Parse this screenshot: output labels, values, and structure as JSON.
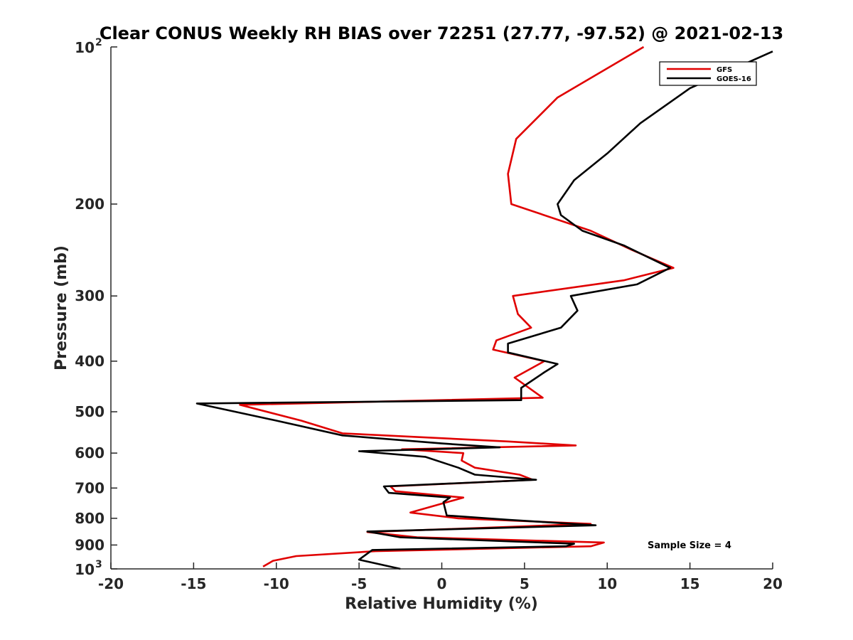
{
  "chart_data": {
    "type": "line",
    "title": "Clear CONUS Weekly RH BIAS over 72251 (27.77, -97.52) @ 2021-02-13",
    "xlabel": "Relative Humidity (%)",
    "ylabel": "Pressure (mb)",
    "xlim": [
      -20,
      20
    ],
    "ylim": [
      1000,
      100
    ],
    "y_scale": "log",
    "grid": false,
    "legend_position": "top-right",
    "x_ticks": [
      "-20",
      "-15",
      "-10",
      "-5",
      "0",
      "5",
      "10",
      "15",
      "20"
    ],
    "y_ticks": [
      {
        "value": 100,
        "base": "10",
        "exp": "2"
      },
      {
        "value": 200,
        "label": "200"
      },
      {
        "value": 300,
        "label": "300"
      },
      {
        "value": 400,
        "label": "400"
      },
      {
        "value": 500,
        "label": "500"
      },
      {
        "value": 600,
        "label": "600"
      },
      {
        "value": 700,
        "label": "700"
      },
      {
        "value": 800,
        "label": "800"
      },
      {
        "value": 900,
        "label": "900"
      },
      {
        "value": 1000,
        "base": "10",
        "exp": "3"
      }
    ],
    "annotation": "Sample Size = 4",
    "series": [
      {
        "name": "GFS",
        "color": "#e00000",
        "points": [
          [
            12.2,
            100
          ],
          [
            7.0,
            125
          ],
          [
            4.5,
            150
          ],
          [
            4.0,
            175
          ],
          [
            4.2,
            200
          ],
          [
            9.0,
            225
          ],
          [
            11.5,
            245
          ],
          [
            14.0,
            265
          ],
          [
            11.0,
            280
          ],
          [
            4.3,
            300
          ],
          [
            4.6,
            325
          ],
          [
            5.4,
            345
          ],
          [
            3.3,
            365
          ],
          [
            3.1,
            380
          ],
          [
            6.2,
            400
          ],
          [
            4.4,
            430
          ],
          [
            6.1,
            470
          ],
          [
            -12.2,
            485
          ],
          [
            -8.5,
            520
          ],
          [
            -6.0,
            550
          ],
          [
            4.0,
            570
          ],
          [
            8.1,
            580
          ],
          [
            -2.4,
            590
          ],
          [
            1.3,
            600
          ],
          [
            1.2,
            620
          ],
          [
            2.0,
            640
          ],
          [
            4.7,
            660
          ],
          [
            5.5,
            675
          ],
          [
            -3.1,
            695
          ],
          [
            -2.8,
            710
          ],
          [
            1.3,
            730
          ],
          [
            0.0,
            750
          ],
          [
            -1.9,
            780
          ],
          [
            1.0,
            800
          ],
          [
            9.0,
            820
          ],
          [
            -4.5,
            850
          ],
          [
            -1.5,
            870
          ],
          [
            9.8,
            890
          ],
          [
            9.0,
            905
          ],
          [
            -4.0,
            925
          ],
          [
            -8.8,
            945
          ],
          [
            -10.2,
            965
          ],
          [
            -10.8,
            990
          ]
        ]
      },
      {
        "name": "GOES-16",
        "color": "#000000",
        "points": [
          [
            20.0,
            102
          ],
          [
            15.0,
            120
          ],
          [
            12.0,
            140
          ],
          [
            10.0,
            160
          ],
          [
            8.0,
            180
          ],
          [
            7.0,
            200
          ],
          [
            7.2,
            210
          ],
          [
            8.5,
            225
          ],
          [
            11.0,
            240
          ],
          [
            13.8,
            265
          ],
          [
            11.8,
            285
          ],
          [
            7.8,
            300
          ],
          [
            8.2,
            320
          ],
          [
            7.2,
            345
          ],
          [
            4.0,
            370
          ],
          [
            4.0,
            385
          ],
          [
            7.0,
            405
          ],
          [
            6.2,
            420
          ],
          [
            4.8,
            450
          ],
          [
            4.8,
            475
          ],
          [
            -14.8,
            482
          ],
          [
            -10.0,
            520
          ],
          [
            -6.0,
            555
          ],
          [
            0.0,
            575
          ],
          [
            3.5,
            585
          ],
          [
            -5.0,
            595
          ],
          [
            -1.0,
            610
          ],
          [
            1.0,
            640
          ],
          [
            2.0,
            660
          ],
          [
            5.7,
            675
          ],
          [
            -3.5,
            695
          ],
          [
            -3.2,
            715
          ],
          [
            0.5,
            730
          ],
          [
            0.1,
            745
          ],
          [
            0.3,
            790
          ],
          [
            4.0,
            805
          ],
          [
            9.3,
            825
          ],
          [
            -4.5,
            848
          ],
          [
            -2.5,
            870
          ],
          [
            8.0,
            895
          ],
          [
            7.5,
            905
          ],
          [
            -4.2,
            920
          ],
          [
            -5.0,
            960
          ],
          [
            -2.5,
            1000
          ]
        ]
      }
    ]
  }
}
